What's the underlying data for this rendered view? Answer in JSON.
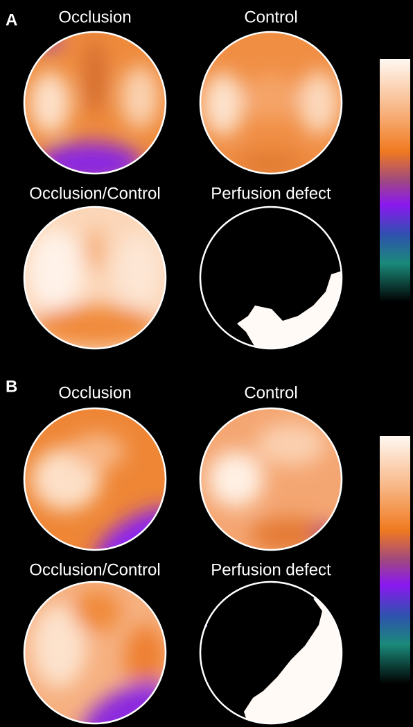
{
  "panels": [
    {
      "letter": "A",
      "maps": [
        {
          "label": "Occlusion"
        },
        {
          "label": "Control"
        },
        {
          "label": "Occlusion/Control"
        },
        {
          "label": "Perfusion defect"
        }
      ]
    },
    {
      "letter": "B",
      "maps": [
        {
          "label": "Occlusion"
        },
        {
          "label": "Control"
        },
        {
          "label": "Occlusion/Control"
        },
        {
          "label": "Perfusion defect"
        }
      ]
    }
  ]
}
